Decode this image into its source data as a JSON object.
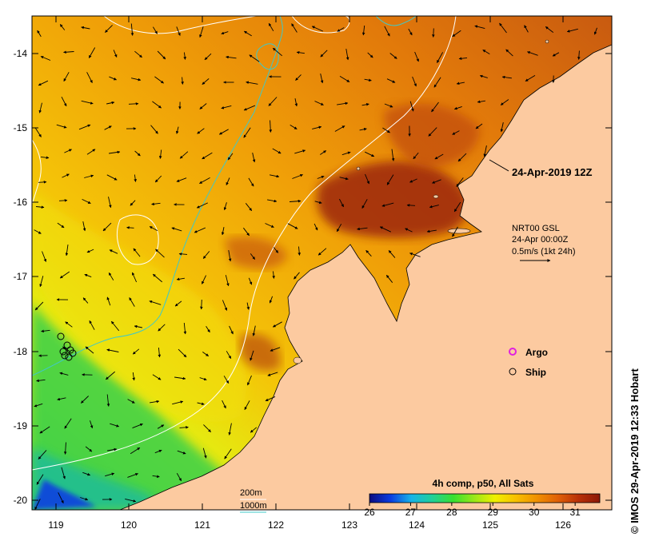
{
  "map": {
    "axes": {
      "x_ticks": [
        "119",
        "120",
        "121",
        "122",
        "123",
        "124",
        "125",
        "126"
      ],
      "y_ticks": [
        "-14",
        "-15",
        "-16",
        "-17",
        "-18",
        "-19",
        "-20"
      ]
    },
    "timestamp_label": "24-Apr-2019 12Z",
    "current_info": {
      "line1": "NRT00 GSL",
      "line2": "24-Apr 00:00Z",
      "line3": "0.5m/s (1kt 24h)"
    },
    "legend": {
      "argo_label": "Argo",
      "ship_label": "Ship",
      "argo_color": "#e020e0"
    },
    "isobaths": {
      "label_200m": "200m",
      "label_1000m": "1000m",
      "color_200m": "#ffffff",
      "color_1000m": "#40c8c8"
    },
    "colorbar": {
      "title": "4h comp, p50, All Sats",
      "ticks": [
        "26",
        "27",
        "28",
        "29",
        "30",
        "31"
      ],
      "min": 26,
      "max": 31.6,
      "colors": [
        "#0c0c80",
        "#0a3ce0",
        "#18b4e8",
        "#20d098",
        "#38e030",
        "#9ae818",
        "#f0f000",
        "#f8c000",
        "#f09000",
        "#e06008",
        "#b83008",
        "#8c1808"
      ]
    },
    "land_color": "#fccaa0",
    "credit": "© IMOS 29-Apr-2019 12:33 Hobart"
  }
}
